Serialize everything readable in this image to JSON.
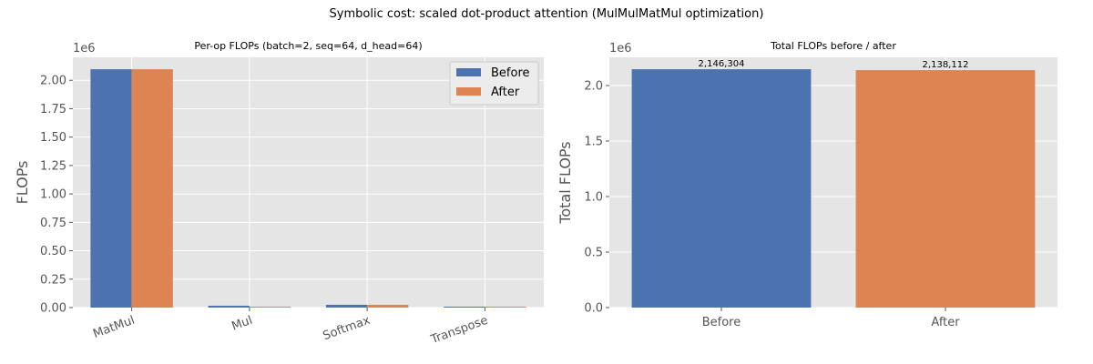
{
  "figure": {
    "suptitle": "Symbolic cost: scaled dot-product attention (MulMulMatMul optimization)"
  },
  "colors": {
    "before": "#4c72b0",
    "after": "#dd8452",
    "axes_bg": "#e5e5e5",
    "grid": "#ffffff",
    "tick_text": "#555555"
  },
  "chart_data": [
    {
      "type": "bar",
      "title": "Per-op FLOPs  (batch=2, seq=64, d_head=64)",
      "xlabel": "",
      "ylabel": "FLOPs",
      "offset_text": "1e6",
      "categories": [
        "MatMul",
        "Mul",
        "Softmax",
        "Transpose"
      ],
      "series": [
        {
          "name": "Before",
          "color": "#4c72b0",
          "values": [
            2097152,
            16384,
            24576,
            8192
          ]
        },
        {
          "name": "After",
          "color": "#dd8452",
          "values": [
            2097152,
            8192,
            24576,
            8192
          ]
        }
      ],
      "ylim": [
        0,
        2202009.6
      ],
      "yticks": [
        0,
        250000,
        500000,
        750000,
        1000000,
        1250000,
        1500000,
        1750000,
        2000000
      ],
      "ytick_labels": [
        "0.00",
        "0.25",
        "0.50",
        "0.75",
        "1.00",
        "1.25",
        "1.50",
        "1.75",
        "2.00"
      ],
      "grid": true,
      "legend": "top-right"
    },
    {
      "type": "bar",
      "title": "Total FLOPs before / after",
      "xlabel": "",
      "ylabel": "Total FLOPs",
      "offset_text": "1e6",
      "categories": [
        "Before",
        "After"
      ],
      "values": [
        2146304,
        2138112
      ],
      "value_labels": [
        "2,146,304",
        "2,138,112"
      ],
      "colors": [
        "#4c72b0",
        "#dd8452"
      ],
      "ylim": [
        0,
        2253619.2
      ],
      "yticks": [
        0,
        500000,
        1000000,
        1500000,
        2000000
      ],
      "ytick_labels": [
        "0.0",
        "0.5",
        "1.0",
        "1.5",
        "2.0"
      ],
      "grid": true
    }
  ]
}
